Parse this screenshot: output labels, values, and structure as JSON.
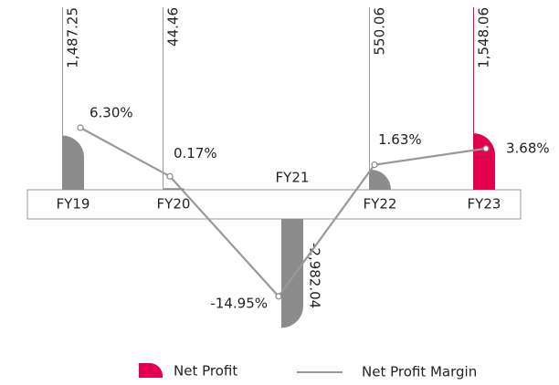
{
  "chart_data": {
    "type": "bar_line",
    "categories": [
      "FY19",
      "FY20",
      "FY21",
      "FY22",
      "FY23"
    ],
    "series": [
      {
        "name": "Net Profit",
        "color": "#e2004f",
        "bar_colors": [
          "#8c8c8c",
          "#8c8c8c",
          "#8c8c8c",
          "#8c8c8c",
          "#e2004f"
        ],
        "values": [
          1487.25,
          44.46,
          -2982.04,
          550.06,
          1548.06
        ],
        "value_labels": [
          "1,487.25",
          "44.46",
          "-2,982.04",
          "550.06",
          "1,548.06"
        ]
      },
      {
        "name": "Net Profit Margin",
        "color": "#999999",
        "values": [
          6.3,
          0.17,
          -14.95,
          1.63,
          3.68
        ],
        "value_labels": [
          "6.30%",
          "0.17%",
          "-14.95%",
          "1.63%",
          "3.68%"
        ]
      }
    ]
  }
}
